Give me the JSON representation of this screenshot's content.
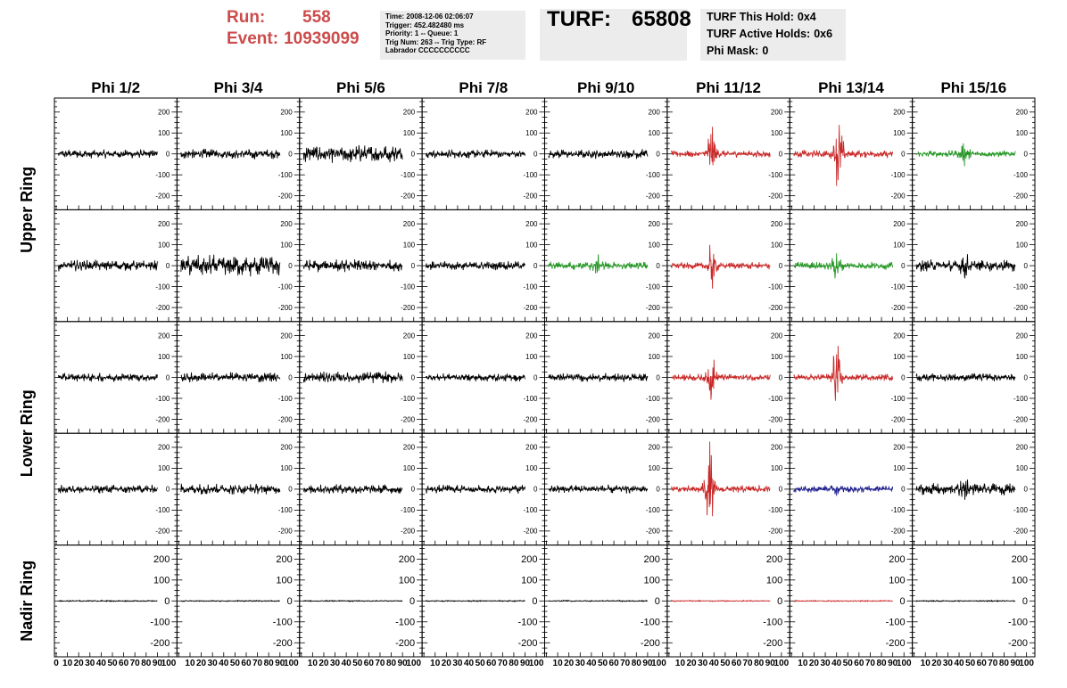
{
  "header": {
    "run_label": "Run:",
    "run_value": "558",
    "event_label": "Event:",
    "event_value": "10939099",
    "accent_color": "#cc4c4c",
    "info_lines": [
      "Time: 2008-12-06 02:06:07",
      "Trigger: 452.482480 ms",
      "Priority: 1 -- Queue: 1",
      "Trig Num: 263 -- Trig Type: RF",
      "Labrador CCCCCCCCCC"
    ],
    "turf_label": "TURF:",
    "turf_value": "65808",
    "holds": [
      {
        "label": "TURF This Hold:",
        "value": "0x4"
      },
      {
        "label": "TURF Active Holds:",
        "value": "0x6"
      },
      {
        "label": "Phi Mask:",
        "value": "0"
      }
    ]
  },
  "chart_data": {
    "type": "line",
    "columns": [
      "Phi 1/2",
      "Phi 3/4",
      "Phi 5/6",
      "Phi 7/8",
      "Phi 9/10",
      "Phi 11/12",
      "Phi 13/14",
      "Phi 15/16"
    ],
    "rows": [
      "Upper Ring",
      "Upper Ring",
      "Lower Ring",
      "Lower Ring",
      "Nadir Ring"
    ],
    "row_groups": [
      {
        "label": "Upper Ring",
        "rows": [
          0,
          1
        ]
      },
      {
        "label": "Lower Ring",
        "rows": [
          2,
          3
        ]
      },
      {
        "label": "Nadir Ring",
        "rows": [
          4
        ]
      }
    ],
    "xlim": [
      0,
      100
    ],
    "x_tick_labels": [
      "0",
      "10",
      "20",
      "30",
      "40",
      "50",
      "60",
      "70",
      "80",
      "90",
      "100"
    ],
    "ylim": [
      -250,
      250
    ],
    "y_tick_labels": [
      "200",
      "100",
      "0",
      "-100",
      "-200"
    ],
    "colors": {
      "black": "#000000",
      "red": "#c82828",
      "green": "#259625",
      "blue": "#1e1e8c"
    },
    "panels": [
      [
        {
          "amp": 22,
          "color": "black",
          "burst": 0,
          "center": 0
        },
        {
          "amp": 26,
          "color": "black",
          "burst": 0,
          "center": 0
        },
        {
          "amp": 45,
          "color": "black",
          "burst": 0,
          "center": 0
        },
        {
          "amp": 22,
          "color": "black",
          "burst": 0,
          "center": 0
        },
        {
          "amp": 24,
          "color": "black",
          "burst": 0,
          "center": 0
        },
        {
          "amp": 18,
          "color": "red",
          "burst": 150,
          "center": 38
        },
        {
          "amp": 20,
          "color": "red",
          "burst": 200,
          "center": 42
        },
        {
          "amp": 18,
          "color": "green",
          "burst": 60,
          "center": 45
        }
      ],
      [
        {
          "amp": 28,
          "color": "black",
          "burst": 0,
          "center": 0
        },
        {
          "amp": 55,
          "color": "black",
          "burst": 0,
          "center": 0
        },
        {
          "amp": 32,
          "color": "black",
          "burst": 0,
          "center": 0
        },
        {
          "amp": 22,
          "color": "black",
          "burst": 0,
          "center": 0
        },
        {
          "amp": 22,
          "color": "green",
          "burst": 40,
          "center": 45
        },
        {
          "amp": 18,
          "color": "red",
          "burst": 110,
          "center": 38
        },
        {
          "amp": 20,
          "color": "green",
          "burst": 70,
          "center": 40
        },
        {
          "amp": 30,
          "color": "black",
          "burst": 50,
          "center": 45
        }
      ],
      [
        {
          "amp": 22,
          "color": "black",
          "burst": 0,
          "center": 0
        },
        {
          "amp": 26,
          "color": "black",
          "burst": 0,
          "center": 0
        },
        {
          "amp": 30,
          "color": "black",
          "burst": 0,
          "center": 0
        },
        {
          "amp": 20,
          "color": "black",
          "burst": 0,
          "center": 0
        },
        {
          "amp": 22,
          "color": "black",
          "burst": 0,
          "center": 0
        },
        {
          "amp": 18,
          "color": "red",
          "burst": 110,
          "center": 38
        },
        {
          "amp": 18,
          "color": "red",
          "burst": 200,
          "center": 40
        },
        {
          "amp": 20,
          "color": "black",
          "burst": 0,
          "center": 0
        }
      ],
      [
        {
          "amp": 22,
          "color": "black",
          "burst": 0,
          "center": 0
        },
        {
          "amp": 28,
          "color": "black",
          "burst": 0,
          "center": 0
        },
        {
          "amp": 24,
          "color": "black",
          "burst": 0,
          "center": 0
        },
        {
          "amp": 22,
          "color": "black",
          "burst": 0,
          "center": 0
        },
        {
          "amp": 22,
          "color": "black",
          "burst": 0,
          "center": 0
        },
        {
          "amp": 20,
          "color": "red",
          "burst": 240,
          "center": 36
        },
        {
          "amp": 18,
          "color": "blue",
          "burst": 20,
          "center": 40
        },
        {
          "amp": 30,
          "color": "black",
          "burst": 50,
          "center": 45
        }
      ],
      [
        {
          "amp": 3,
          "color": "black",
          "burst": 0,
          "center": 0
        },
        {
          "amp": 3,
          "color": "black",
          "burst": 0,
          "center": 0
        },
        {
          "amp": 3,
          "color": "black",
          "burst": 0,
          "center": 0
        },
        {
          "amp": 3,
          "color": "black",
          "burst": 0,
          "center": 0
        },
        {
          "amp": 3,
          "color": "black",
          "burst": 0,
          "center": 0
        },
        {
          "amp": 3,
          "color": "red",
          "burst": 0,
          "center": 0
        },
        {
          "amp": 3,
          "color": "red",
          "burst": 0,
          "center": 0
        },
        {
          "amp": 3,
          "color": "black",
          "burst": 0,
          "center": 0
        }
      ]
    ]
  }
}
